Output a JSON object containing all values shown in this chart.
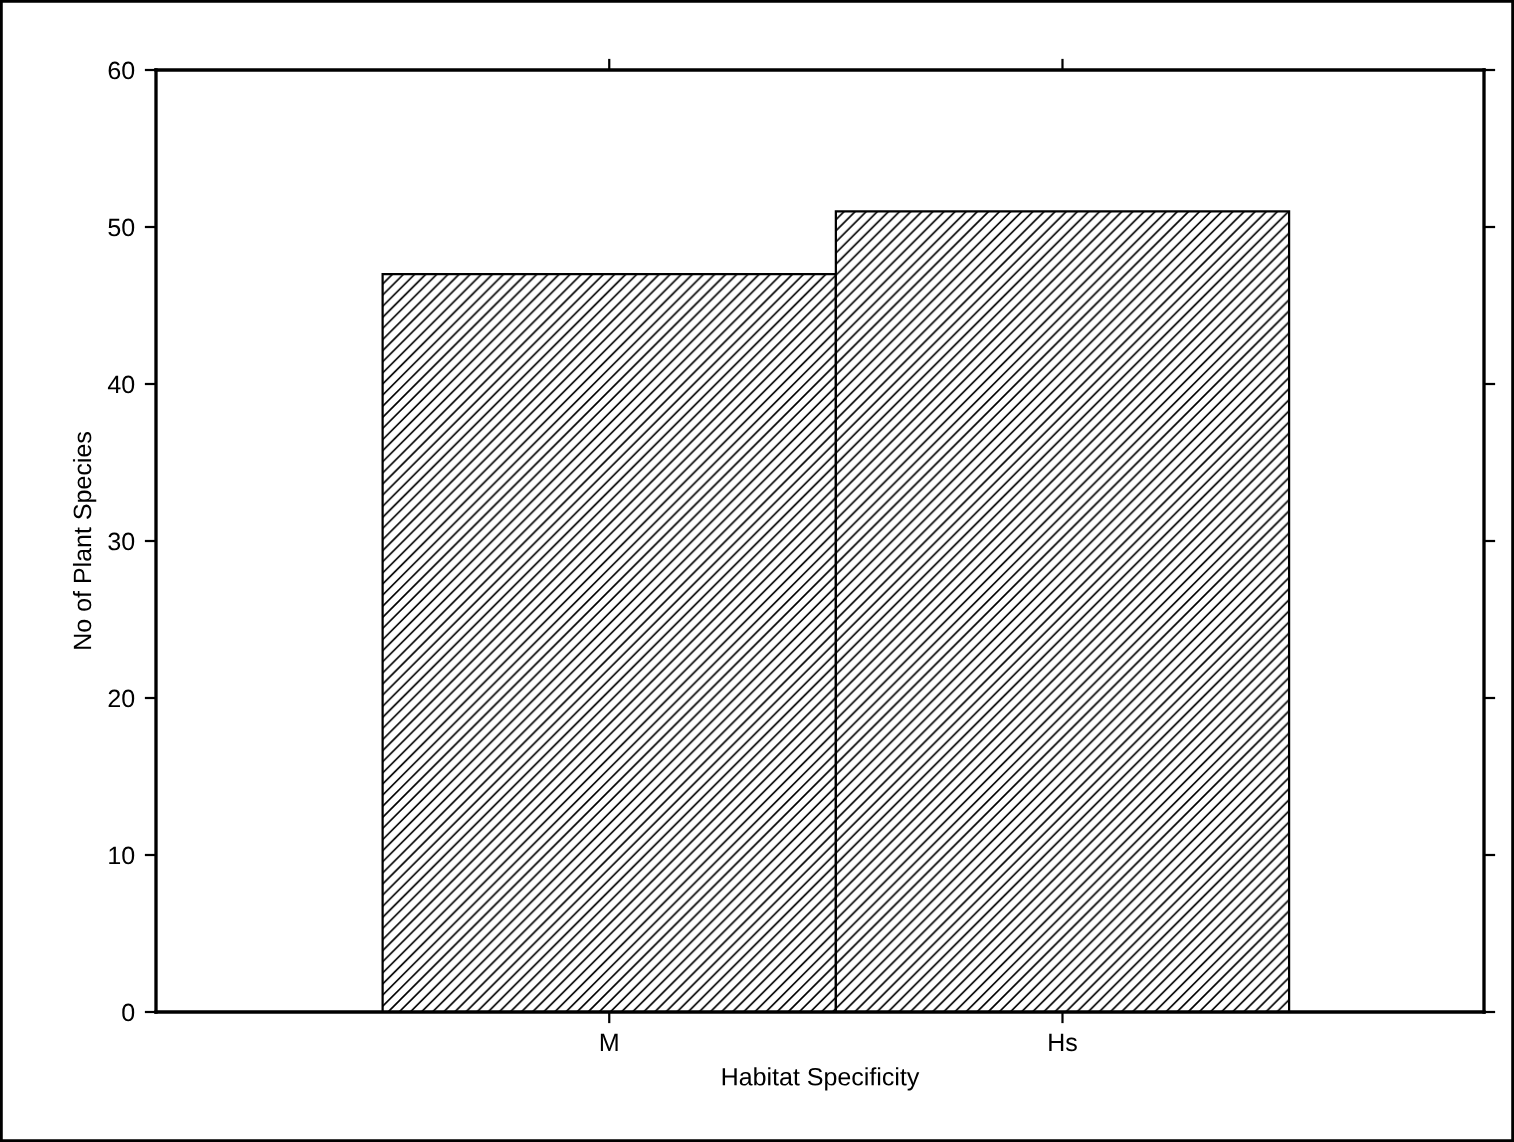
{
  "chart_data": {
    "type": "bar",
    "xlabel": "Habitat Specificity",
    "ylabel": "No of Plant Species",
    "categories": [
      "M",
      "Hs"
    ],
    "values": [
      47,
      51
    ],
    "color": "#000000",
    "ylim": [
      0,
      60
    ],
    "yticks": [
      0,
      10,
      20,
      30,
      40,
      50,
      60
    ],
    "grid": false,
    "legend": false
  }
}
